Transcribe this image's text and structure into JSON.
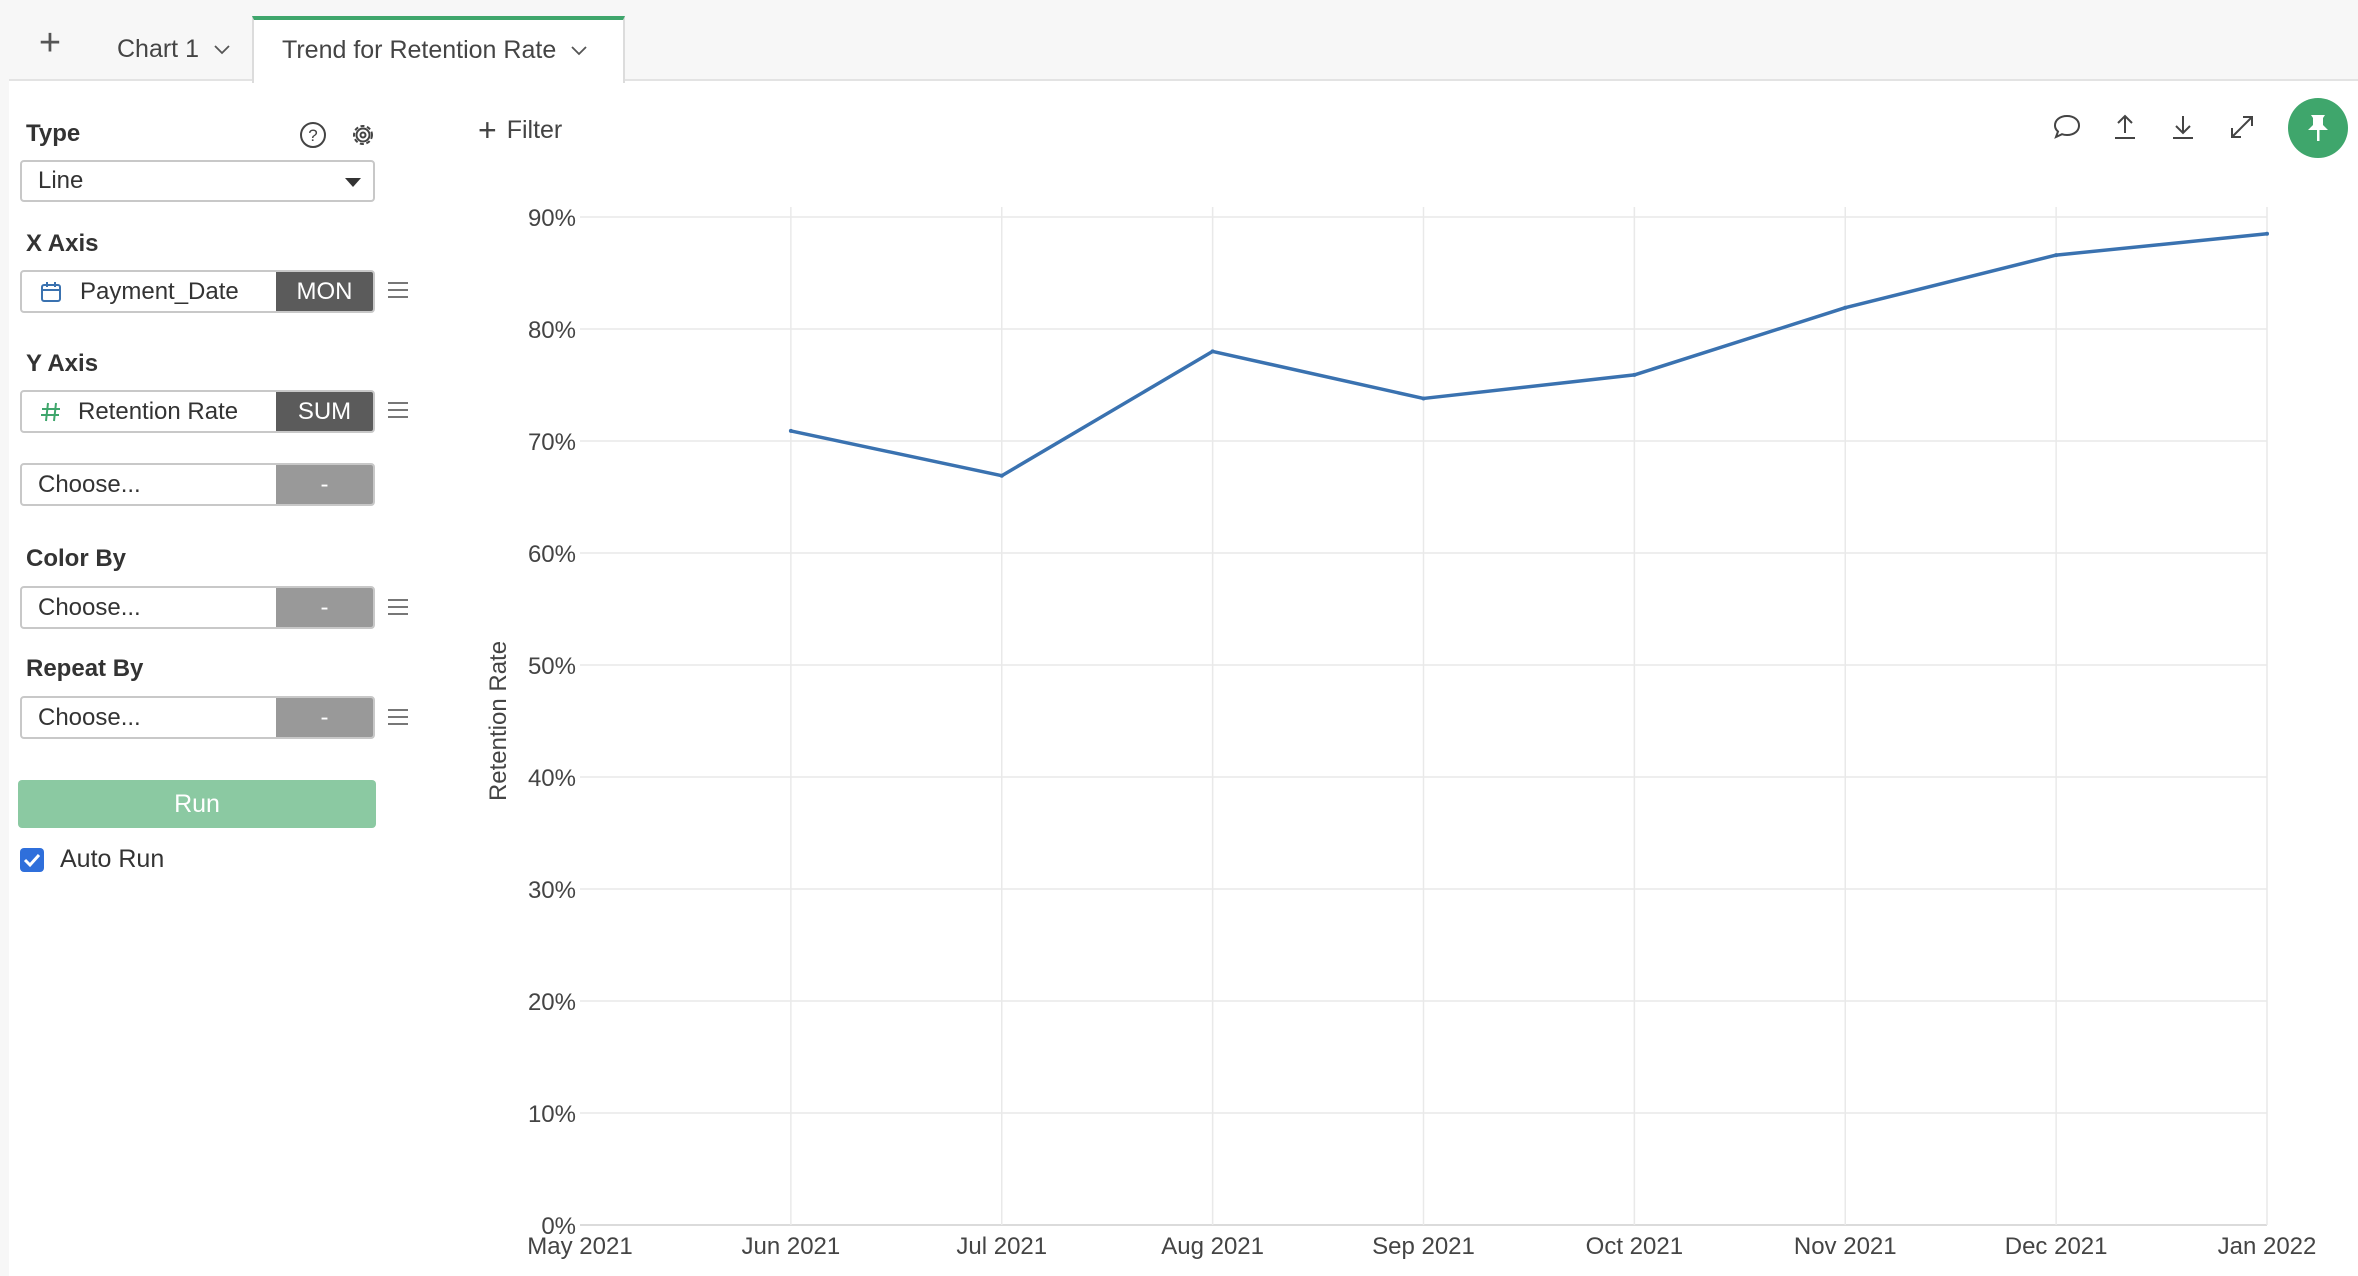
{
  "tabs": [
    {
      "label": "Chart 1",
      "active": false
    },
    {
      "label": "Trend for Retention Rate",
      "active": true
    }
  ],
  "sidebar": {
    "type_label": "Type",
    "type_value": "Line",
    "x_axis_label": "X Axis",
    "x_field": {
      "name": "Payment_Date",
      "agg": "MON",
      "icon": "calendar-icon"
    },
    "y_axis_label": "Y Axis",
    "y_field": {
      "name": "Retention Rate",
      "agg": "SUM",
      "icon": "hash-icon"
    },
    "y_extra": {
      "name": "Choose...",
      "agg": "-"
    },
    "color_by_label": "Color By",
    "color_by": {
      "name": "Choose...",
      "agg": "-"
    },
    "repeat_by_label": "Repeat By",
    "repeat_by": {
      "name": "Choose...",
      "agg": "-"
    },
    "run_label": "Run",
    "auto_run_label": "Auto Run",
    "auto_run_checked": true
  },
  "toolbar": {
    "filter_label": "Filter",
    "icons": [
      "comment-icon",
      "upload-icon",
      "download-icon",
      "expand-icon",
      "pin-icon"
    ]
  },
  "colors": {
    "accent": "#3fa66c",
    "line": "#3a72b0",
    "run_button": "#8bc9a2",
    "agg_dark": "#5b5b5b",
    "agg_light": "#999999",
    "checkbox": "#2f6fdb"
  },
  "chart_data": {
    "type": "line",
    "x": [
      "May 2021",
      "Jun 2021",
      "Jul 2021",
      "Aug 2021",
      "Sep 2021",
      "Oct 2021",
      "Nov 2021",
      "Dec 2021",
      "Jan 2022"
    ],
    "series": [
      {
        "values": [
          null,
          0.709,
          0.669,
          0.78,
          0.738,
          0.759,
          0.819,
          0.866,
          0.885
        ]
      }
    ],
    "ylabel": "Retention Rate",
    "xlabel": "",
    "ylim": [
      0,
      0.9
    ],
    "yticks": [
      "0%",
      "10%",
      "20%",
      "30%",
      "40%",
      "50%",
      "60%",
      "70%",
      "80%",
      "90%"
    ],
    "grid": true
  }
}
